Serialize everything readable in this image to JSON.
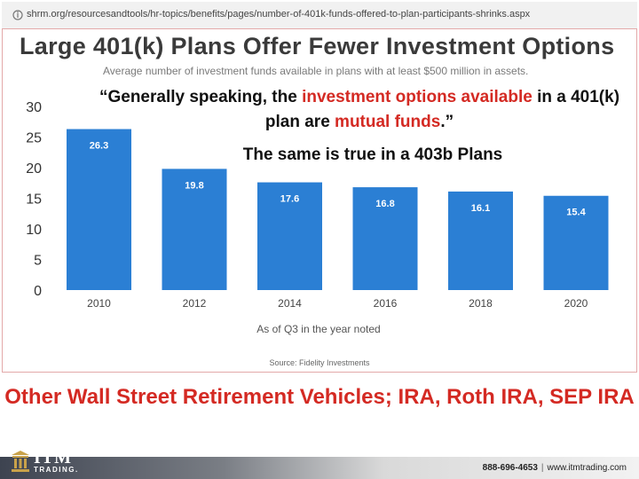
{
  "browser": {
    "url": "shrm.org/resourcesandtools/hr-topics/benefits/pages/number-of-401k-funds-offered-to-plan-participants-shrinks.aspx"
  },
  "colors": {
    "bar": "#2b7fd4",
    "accent_red": "#d42a23",
    "frame": "#e3a9a9"
  },
  "quote": {
    "open": "“Generally speaking, the ",
    "highlight1": "investment options available",
    "mid": " in a 401(k) plan are ",
    "highlight2": "mutual funds",
    "close": ".”"
  },
  "note": "The same is true in a 403b Plans",
  "bottom_title": "Other Wall Street Retirement Vehicles; IRA, Roth IRA, SEP IRA",
  "footer": {
    "logo_itm": "ITM",
    "logo_trading": "TRADING.",
    "phone": "888-696-4653",
    "separator": "|",
    "website": "www.itmtrading.com"
  },
  "chart_data": {
    "type": "bar",
    "title": "Large 401(k) Plans Offer Fewer Investment Options",
    "subtitle": "Average number of investment funds available in plans with at least $500 million in assets.",
    "categories": [
      "2010",
      "2012",
      "2014",
      "2016",
      "2018",
      "2020"
    ],
    "values": [
      26.3,
      19.8,
      17.6,
      16.8,
      16.1,
      15.4
    ],
    "value_labels": [
      "26.3",
      "19.8",
      "17.6",
      "16.8",
      "16.1",
      "15.4"
    ],
    "yticks": [
      "0",
      "5",
      "10",
      "15",
      "20",
      "25",
      "30"
    ],
    "ylim": [
      0,
      30
    ],
    "xlabel": "As of Q3 in the year noted",
    "ylabel": "",
    "source": "Source: Fidelity Investments",
    "grid": false,
    "bar_color": "#2b7fd4"
  }
}
